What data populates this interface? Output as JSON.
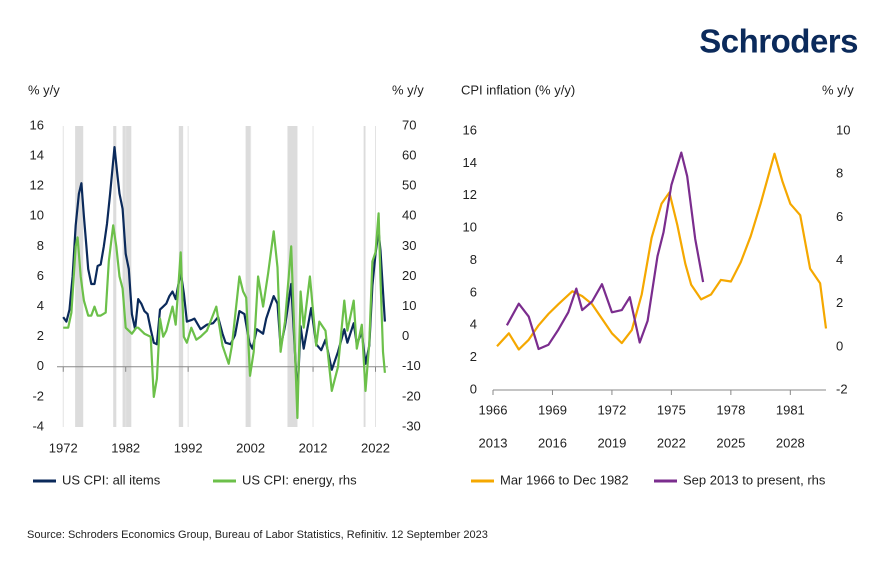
{
  "logo": "Schroders",
  "source": "Source:  Schroders  Economics  Group,  Bureau  of  Labor Statistics,  Refinitiv.  12  September  2023",
  "chart_data": [
    {
      "type": "line",
      "y_label": "% y/y",
      "y2_label": "% y/y",
      "grid": "x",
      "xlim": [
        1971,
        2024
      ],
      "xticks": [
        1972,
        1982,
        1992,
        2002,
        2012,
        2022
      ],
      "ylim": [
        -4,
        16
      ],
      "yticks": [
        -4,
        -2,
        0,
        2,
        4,
        6,
        8,
        10,
        12,
        14,
        16
      ],
      "y2lim": [
        -30,
        70
      ],
      "y2ticks": [
        -30,
        -20,
        -10,
        0,
        10,
        20,
        30,
        40,
        50,
        60,
        70
      ],
      "recessions": {
        "color": "#dcdcdc",
        "spans": [
          [
            1973.9,
            1975.2
          ],
          [
            1980.0,
            1980.5
          ],
          [
            1981.5,
            1982.9
          ],
          [
            1990.5,
            1991.2
          ],
          [
            2001.2,
            2001.9
          ],
          [
            2007.9,
            2009.5
          ],
          [
            2020.1,
            2020.4
          ]
        ]
      },
      "series": [
        {
          "name": "US CPI: all items",
          "color": "#0b2a5b",
          "x": [
            1972,
            1972.5,
            1973,
            1973.5,
            1974,
            1974.5,
            1974.9,
            1975.3,
            1975.7,
            1976,
            1976.5,
            1977,
            1977.5,
            1978,
            1978.5,
            1979,
            1979.5,
            1980.2,
            1980.6,
            1981,
            1981.5,
            1982,
            1982.5,
            1983,
            1983.5,
            1984,
            1984.5,
            1985,
            1985.5,
            1986,
            1986.5,
            1987,
            1987.5,
            1988,
            1988.5,
            1989,
            1989.5,
            1990,
            1990.8,
            1991.3,
            1991.8,
            1992.5,
            1993,
            1994,
            1995,
            1996,
            1996.8,
            1997.5,
            1998,
            1998.8,
            1999.5,
            2000.2,
            2001,
            2001.8,
            2002.3,
            2003,
            2004,
            2004.5,
            2005.7,
            2006.3,
            2006.8,
            2007.5,
            2008.5,
            2009.5,
            2010,
            2010.5,
            2011.7,
            2012.5,
            2013.3,
            2014,
            2015,
            2016,
            2017,
            2017.5,
            2018.5,
            2019,
            2019.8,
            2020.4,
            2021,
            2021.5,
            2022,
            2022.5,
            2022.8,
            2023.2,
            2023.5
          ],
          "values": [
            3.3,
            3.0,
            3.8,
            6,
            9.4,
            11.5,
            12.2,
            10,
            8,
            6.5,
            5.5,
            5.5,
            6.7,
            6.8,
            8,
            9.5,
            11.5,
            14.6,
            13,
            11.5,
            10.5,
            7.5,
            6.5,
            3.5,
            2.5,
            4.5,
            4.2,
            3.7,
            3.5,
            2.5,
            1.6,
            1.5,
            3.8,
            4.0,
            4.2,
            4.7,
            5,
            4.5,
            6.3,
            4.9,
            3.0,
            3.1,
            3.2,
            2.5,
            2.8,
            2.9,
            3.3,
            2.2,
            1.6,
            1.5,
            2.1,
            3.7,
            3.5,
            1.6,
            1.2,
            2.5,
            2.2,
            3.2,
            4.7,
            4.2,
            1.3,
            2.7,
            5.5,
            -2.0,
            2.7,
            1.2,
            3.9,
            1.5,
            1.1,
            1.8,
            -0.2,
            1.0,
            2.5,
            1.6,
            2.9,
            1.5,
            2.3,
            0.2,
            1.4,
            5.4,
            7.5,
            9.0,
            7.7,
            5.0,
            3.0
          ]
        },
        {
          "name": "US CPI: energy, rhs",
          "color": "#6cc04a",
          "axis": "y2",
          "x": [
            1972,
            1972.8,
            1973.3,
            1974,
            1974.3,
            1974.8,
            1975.3,
            1976,
            1976.5,
            1977,
            1977.5,
            1978,
            1978.8,
            1979.3,
            1980.0,
            1980.5,
            1981,
            1981.5,
            1982,
            1982.5,
            1983,
            1983.7,
            1984,
            1985,
            1986,
            1986.5,
            1987,
            1987.5,
            1988,
            1988.5,
            1989.5,
            1990,
            1990.8,
            1991.3,
            1991.8,
            1992.5,
            1993.3,
            1994,
            1995,
            1996.5,
            1997.5,
            1998.5,
            1999,
            2000.2,
            2000.8,
            2001.3,
            2001.9,
            2002.5,
            2003.2,
            2004,
            2004.8,
            2005.7,
            2006.3,
            2006.8,
            2007.5,
            2008.5,
            2009.5,
            2010,
            2010.5,
            2011.5,
            2012.5,
            2013,
            2014,
            2015,
            2016,
            2017,
            2017.5,
            2018.5,
            2019,
            2019.8,
            2020.4,
            2021,
            2021.5,
            2022,
            2022.5,
            2022.8,
            2023.2,
            2023.5
          ],
          "values": [
            3,
            3,
            8,
            30,
            33,
            20,
            12,
            7,
            7,
            10,
            7,
            7,
            8,
            25,
            37,
            30,
            20,
            16,
            3,
            2,
            1,
            3,
            3,
            1,
            0,
            -20,
            -14,
            6,
            0,
            2,
            10,
            4,
            28,
            0,
            -2,
            3,
            -1,
            0,
            2,
            10,
            -3,
            -9,
            -3,
            20,
            15,
            13,
            -13,
            -5,
            20,
            10,
            21,
            35,
            23,
            -5,
            5,
            30,
            -27,
            15,
            3,
            20,
            -3,
            5,
            2,
            -18,
            -10,
            12,
            2,
            12,
            -4,
            4,
            -18,
            -2,
            25,
            28,
            41,
            19,
            -5,
            -12
          ]
        }
      ]
    },
    {
      "type": "line",
      "y_label": "CPI inflation (% y/y)",
      "y2_label": "% y/y",
      "grid": false,
      "xlim": [
        1966,
        1982.8
      ],
      "xticks": [
        1966,
        1969,
        1972,
        1975,
        1978,
        1981
      ],
      "x2lim": [
        2013,
        2029.8
      ],
      "x2ticks": [
        2013,
        2016,
        2019,
        2022,
        2025,
        2028
      ],
      "ylim": [
        0,
        16
      ],
      "yticks": [
        0,
        2,
        4,
        6,
        8,
        10,
        12,
        14,
        16
      ],
      "y2lim": [
        -2,
        10
      ],
      "y2ticks": [
        -2,
        0,
        2,
        4,
        6,
        8,
        10
      ],
      "series": [
        {
          "name": "Mar 1966 to Dec 1982",
          "color": "#f5a800",
          "x": [
            1966.2,
            1966.8,
            1967.3,
            1967.8,
            1968.3,
            1968.8,
            1969.3,
            1970,
            1970.5,
            1971,
            1971.5,
            1972,
            1972.5,
            1973,
            1973.5,
            1974,
            1974.5,
            1974.9,
            1975.3,
            1975.7,
            1976,
            1976.5,
            1977,
            1977.5,
            1978,
            1978.5,
            1979,
            1979.5,
            1980.2,
            1980.6,
            1981,
            1981.5,
            1982,
            1982.5,
            1982.8
          ],
          "values": [
            2.7,
            3.5,
            2.5,
            3.1,
            4,
            4.7,
            5.3,
            6.1,
            5.8,
            5.3,
            4.4,
            3.5,
            2.9,
            3.7,
            5.9,
            9.4,
            11.5,
            12.2,
            10.2,
            7.8,
            6.5,
            5.6,
            5.9,
            6.8,
            6.7,
            7.9,
            9.5,
            11.5,
            14.6,
            12.9,
            11.5,
            10.8,
            7.5,
            6.6,
            3.8
          ]
        },
        {
          "name": "Sep 2013 to present, rhs",
          "color": "#7b2d8e",
          "axis": "y2",
          "xaxis": "x2",
          "x": [
            2013.7,
            2014.3,
            2014.8,
            2015.3,
            2015.8,
            2016.3,
            2016.8,
            2017.2,
            2017.5,
            2018,
            2018.5,
            2019,
            2019.5,
            2019.9,
            2020.4,
            2020.8,
            2021.3,
            2021.6,
            2022,
            2022.5,
            2022.8,
            2023.2,
            2023.6
          ],
          "values": [
            1.0,
            2.0,
            1.4,
            -0.1,
            0.1,
            0.8,
            1.6,
            2.7,
            1.7,
            2.1,
            2.9,
            1.6,
            1.7,
            2.3,
            0.2,
            1.2,
            4.2,
            5.3,
            7.5,
            9.0,
            7.9,
            5.0,
            3.0
          ]
        }
      ]
    }
  ]
}
